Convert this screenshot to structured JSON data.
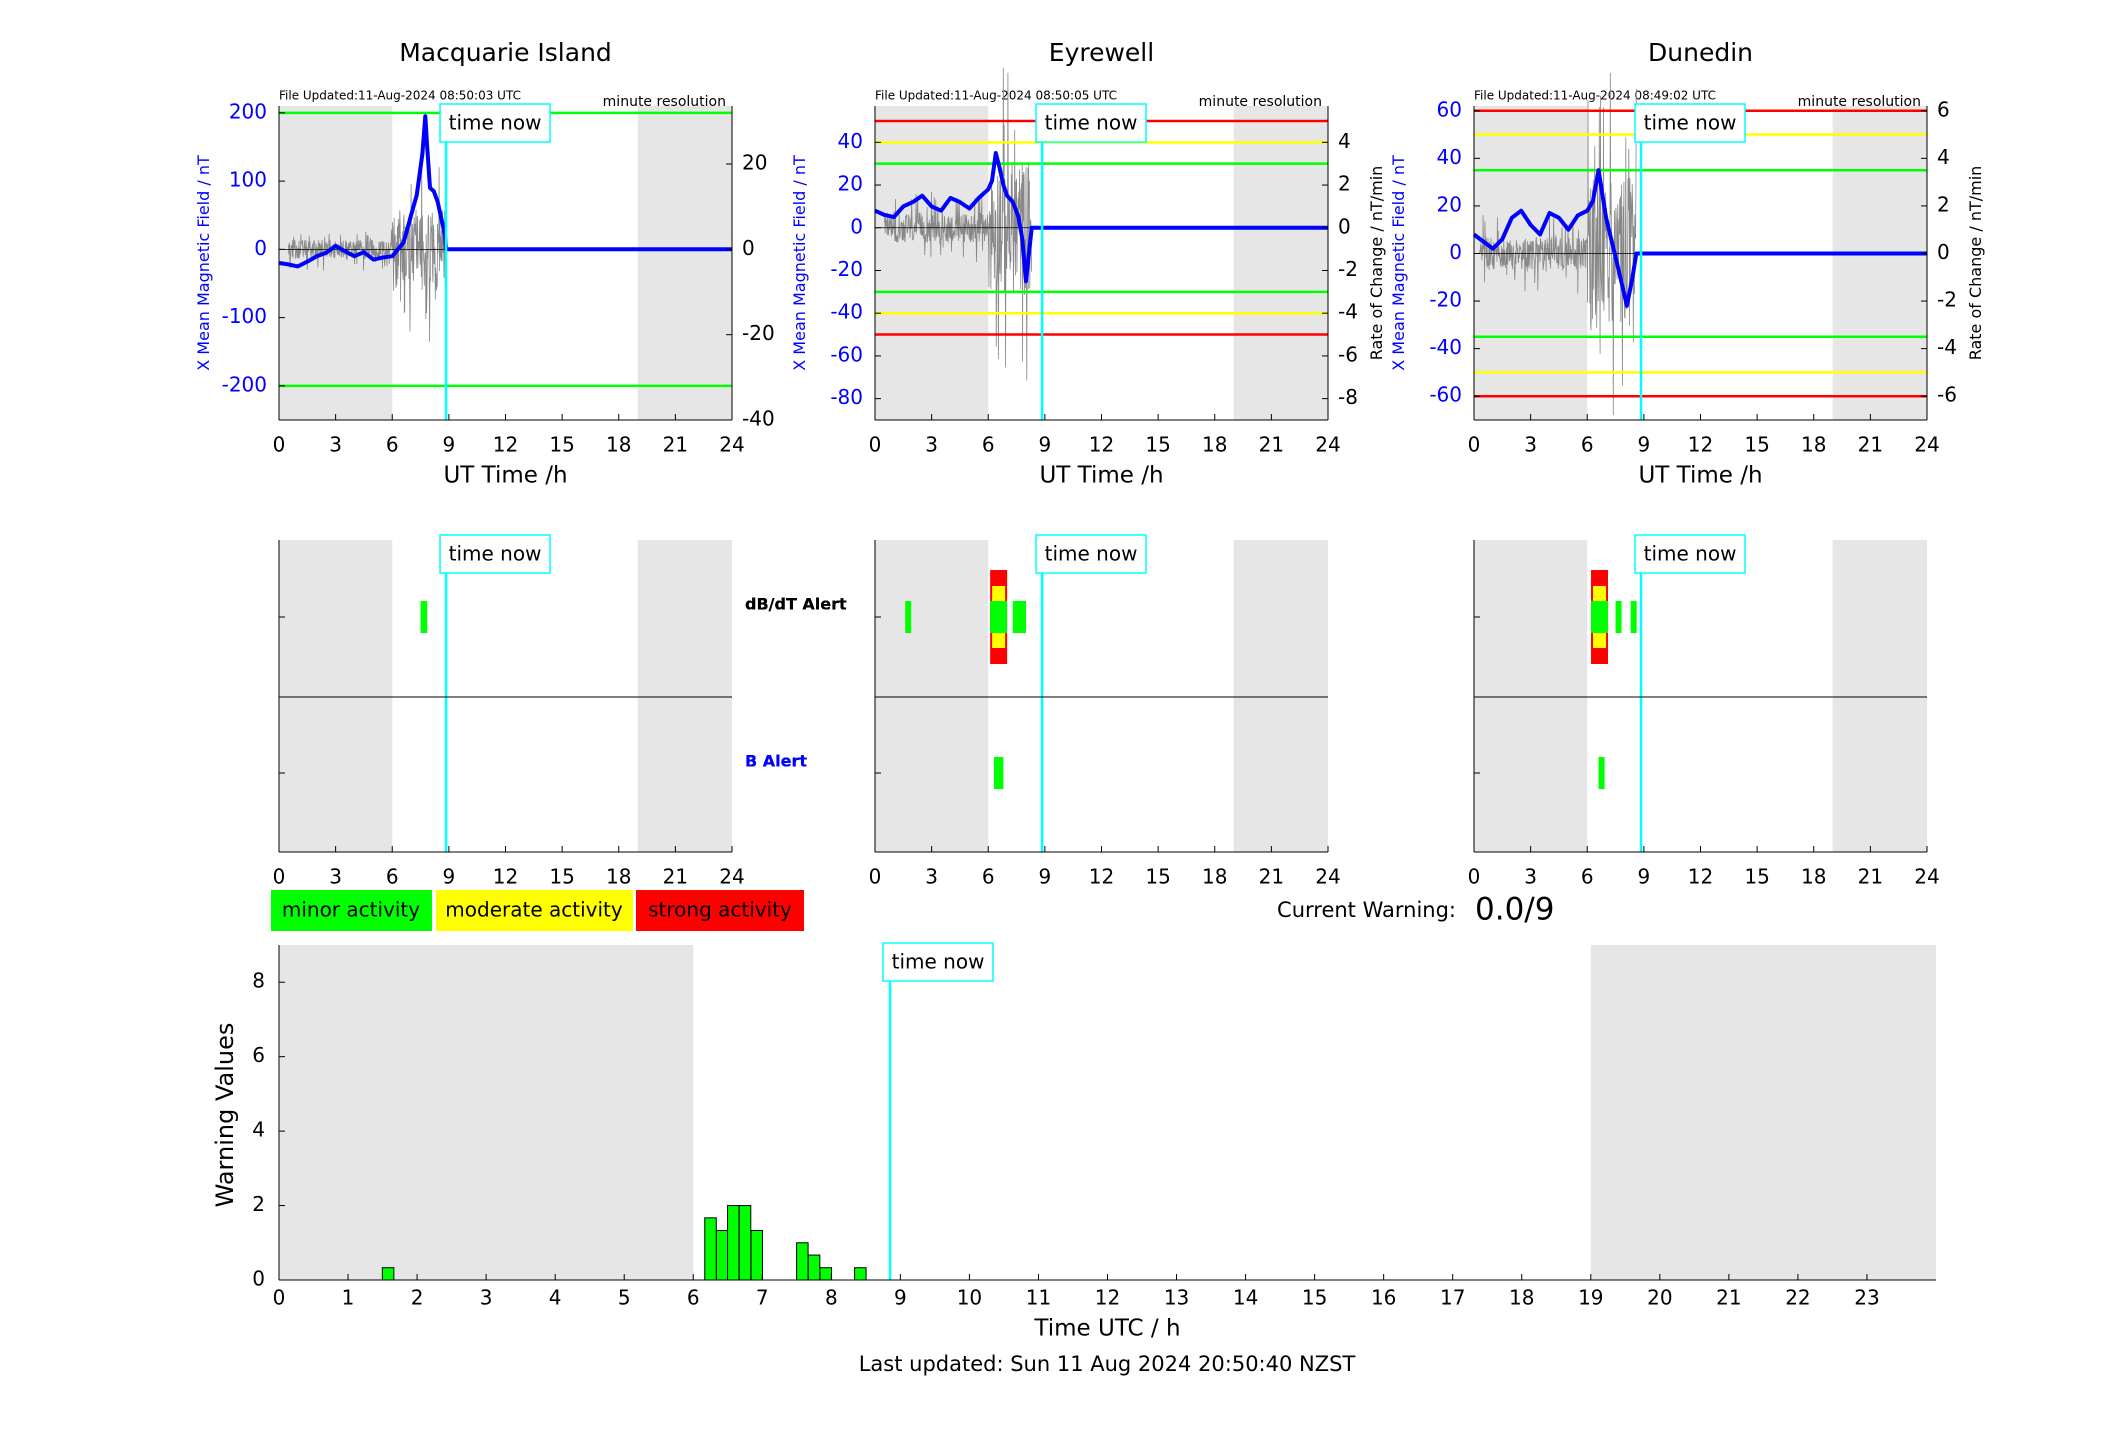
{
  "page": {
    "last_updated": "Last updated: Sun 11 Aug 2024 20:50:40 NZST",
    "current_warning_label": "Current Warning:",
    "current_warning_value": "0.0/9",
    "time_now_label": "time now",
    "time_now_hours": 8.85
  },
  "colors": {
    "minor": "#00ff00",
    "moderate": "#ffff00",
    "strong": "#ff0000",
    "night_shade": "#e6e6e6",
    "mean_field": "#0000ff",
    "time_now": "#00ffff"
  },
  "legend": {
    "minor": "minor activity",
    "moderate": "moderate activity",
    "strong": "strong activity"
  },
  "chart_data": [
    {
      "type": "line",
      "title": "Macquarie Island",
      "file_updated": "File Updated:11-Aug-2024 08:50:03 UTC",
      "resolution": "minute resolution",
      "xlabel": "UT Time /h",
      "ylabel_left": "X Mean Magnetic Field / nT",
      "ylabel_right": "",
      "xlim": [
        0,
        24
      ],
      "ylim_left": [
        -250,
        210
      ],
      "ylim_right": [
        -40,
        33.6
      ],
      "x_ticks": [
        0,
        3,
        6,
        9,
        12,
        15,
        18,
        21,
        24
      ],
      "y_ticks_left": [
        200,
        100,
        0,
        -100,
        -200
      ],
      "y_ticks_right": [
        20,
        0,
        -20,
        -40
      ],
      "night_bands": [
        [
          0,
          6
        ],
        [
          19,
          24
        ]
      ],
      "thresholds": [
        {
          "value": 200,
          "level": "minor"
        },
        {
          "value": -200,
          "level": "minor"
        }
      ],
      "mean_field": {
        "x": [
          0,
          0.5,
          1,
          1.5,
          2,
          2.5,
          3,
          3.5,
          4,
          4.5,
          5,
          5.5,
          6,
          6.3,
          6.6,
          7.0,
          7.3,
          7.6,
          7.75,
          7.85,
          8.0,
          8.2,
          8.4,
          8.6,
          8.8,
          8.85,
          12,
          16,
          20,
          24
        ],
        "y": [
          -20,
          -22,
          -25,
          -18,
          -10,
          -5,
          5,
          -3,
          -10,
          -4,
          -15,
          -12,
          -10,
          0,
          10,
          50,
          80,
          140,
          195,
          150,
          90,
          85,
          70,
          45,
          20,
          0,
          0,
          0,
          0,
          0
        ]
      },
      "rate_of_change_range": [
        0.5,
        8.8
      ],
      "alerts": {
        "dbdt": [
          {
            "start": 7.5,
            "end": 7.85,
            "level": "minor"
          }
        ],
        "b": []
      }
    },
    {
      "type": "line",
      "title": "Eyrewell",
      "file_updated": "File Updated:11-Aug-2024 08:50:05 UTC",
      "resolution": "minute resolution",
      "xlabel": "UT Time /h",
      "ylabel_left": "X Mean Magnetic Field / nT",
      "ylabel_right": "Rate of Change / nT/min",
      "xlim": [
        0,
        24
      ],
      "ylim_left": [
        -90,
        57
      ],
      "ylim_right": [
        -9,
        5.7
      ],
      "x_ticks": [
        0,
        3,
        6,
        9,
        12,
        15,
        18,
        21,
        24
      ],
      "y_ticks_left": [
        40,
        20,
        0,
        -20,
        -40,
        -60,
        -80
      ],
      "y_ticks_right": [
        4,
        2,
        0,
        -2,
        -4,
        -6,
        -8
      ],
      "night_bands": [
        [
          0,
          6
        ],
        [
          19,
          24
        ]
      ],
      "thresholds": [
        {
          "value": 50,
          "level": "strong"
        },
        {
          "value": 40,
          "level": "moderate"
        },
        {
          "value": 30,
          "level": "minor"
        },
        {
          "value": -30,
          "level": "minor"
        },
        {
          "value": -40,
          "level": "moderate"
        },
        {
          "value": -50,
          "level": "strong"
        }
      ],
      "mean_field": {
        "x": [
          0,
          0.5,
          1,
          1.5,
          2,
          2.5,
          3,
          3.5,
          4,
          4.5,
          5,
          5.5,
          6,
          6.2,
          6.4,
          6.6,
          6.8,
          7.0,
          7.3,
          7.6,
          7.8,
          8.0,
          8.3,
          8.6,
          8.85,
          12,
          16,
          20,
          24
        ],
        "y": [
          8,
          6,
          5,
          10,
          12,
          15,
          10,
          8,
          14,
          12,
          9,
          14,
          18,
          22,
          35,
          28,
          20,
          15,
          12,
          5,
          -5,
          -25,
          0,
          0,
          0,
          0,
          0,
          0,
          0
        ]
      },
      "rate_of_change_range": [
        0.5,
        8.3
      ],
      "alerts": {
        "dbdt": [
          {
            "start": 1.6,
            "end": 1.9,
            "level": "minor"
          },
          {
            "start": 6.1,
            "end": 7.0,
            "level": "strong"
          },
          {
            "start": 7.3,
            "end": 8.0,
            "level": "minor"
          }
        ],
        "b": [
          {
            "start": 6.3,
            "end": 6.8,
            "level": "minor"
          }
        ]
      }
    },
    {
      "type": "line",
      "title": "Dunedin",
      "file_updated": "File Updated:11-Aug-2024 08:49:02 UTC",
      "resolution": "minute resolution",
      "xlabel": "UT Time /h",
      "ylabel_left": "X Mean Magnetic Field / nT",
      "ylabel_right": "Rate of Change / nT/min",
      "xlim": [
        0,
        24
      ],
      "ylim_left": [
        -70,
        62
      ],
      "ylim_right": [
        -7,
        6.2
      ],
      "x_ticks": [
        0,
        3,
        6,
        9,
        12,
        15,
        18,
        21,
        24
      ],
      "y_ticks_left": [
        60,
        40,
        20,
        0,
        -20,
        -40,
        -60
      ],
      "y_ticks_right": [
        6,
        4,
        2,
        0,
        -2,
        -4,
        -6
      ],
      "night_bands": [
        [
          0,
          6
        ],
        [
          19,
          24
        ]
      ],
      "thresholds": [
        {
          "value": 60,
          "level": "strong"
        },
        {
          "value": 50,
          "level": "moderate"
        },
        {
          "value": 35,
          "level": "minor"
        },
        {
          "value": -35,
          "level": "minor"
        },
        {
          "value": -50,
          "level": "moderate"
        },
        {
          "value": -60,
          "level": "strong"
        }
      ],
      "mean_field": {
        "x": [
          0,
          0.5,
          1,
          1.5,
          2,
          2.5,
          3,
          3.5,
          4,
          4.5,
          5,
          5.5,
          6,
          6.3,
          6.6,
          6.8,
          7.0,
          7.3,
          7.6,
          7.9,
          8.1,
          8.4,
          8.6,
          8.85,
          12,
          16,
          20,
          24
        ],
        "y": [
          8,
          5,
          2,
          6,
          15,
          18,
          12,
          8,
          17,
          15,
          10,
          16,
          18,
          22,
          35,
          25,
          15,
          5,
          -5,
          -15,
          -22,
          -10,
          0,
          0,
          0,
          0,
          0,
          0
        ]
      },
      "rate_of_change_range": [
        0.3,
        8.6
      ],
      "alerts": {
        "dbdt": [
          {
            "start": 6.2,
            "end": 7.1,
            "level": "strong"
          },
          {
            "start": 7.5,
            "end": 7.8,
            "level": "minor"
          },
          {
            "start": 8.3,
            "end": 8.5,
            "level": "minor"
          }
        ],
        "b": [
          {
            "start": 6.6,
            "end": 6.9,
            "level": "minor"
          }
        ]
      }
    },
    {
      "type": "bar",
      "title": "",
      "xlabel": "Time UTC / h",
      "ylabel": "Warning Values",
      "xlim": [
        0,
        24
      ],
      "ylim": [
        0,
        9
      ],
      "x_ticks": [
        0,
        1,
        2,
        3,
        4,
        5,
        6,
        7,
        8,
        9,
        10,
        11,
        12,
        13,
        14,
        15,
        16,
        17,
        18,
        19,
        20,
        21,
        22,
        23
      ],
      "y_ticks": [
        0,
        2,
        4,
        6,
        8
      ],
      "night_bands": [
        [
          0,
          6
        ],
        [
          19,
          24
        ]
      ],
      "bar_width": 0.1667,
      "x": [
        1.58,
        6.25,
        6.42,
        6.58,
        6.75,
        6.92,
        7.58,
        7.75,
        7.92,
        8.42
      ],
      "values": [
        0.33,
        1.67,
        1.33,
        2.0,
        2.0,
        1.33,
        1.0,
        0.67,
        0.33,
        0.33
      ]
    }
  ]
}
